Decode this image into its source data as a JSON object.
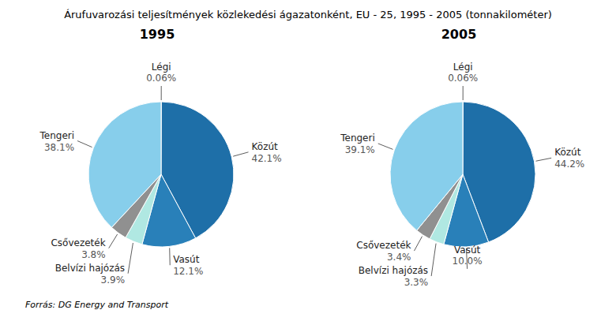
{
  "title": "Árufuvarozási teljesítmények közlekedési ágazatonként, EU - 25, 1995 - 2005 (tonnakilométer)",
  "annotations": [
    "Forrás: DG Energy and Transport"
  ],
  "chart_data": [
    {
      "type": "pie",
      "title": "1995",
      "categories": [
        "Légi",
        "Közút",
        "Vasút",
        "Belvízi hajózás",
        "Csővezeték",
        "Tengeri"
      ],
      "values": [
        0.06,
        42.1,
        12.1,
        3.9,
        3.8,
        38.1
      ],
      "value_labels": [
        "0.06%",
        "42.1%",
        "12.1%",
        "3.9%",
        "3.8%",
        "38.1%"
      ],
      "colors": [
        "#add8e6",
        "#1e6fa8",
        "#2980b9",
        "#b0e8e2",
        "#909090",
        "#87ceeb"
      ],
      "data_labels": true
    },
    {
      "type": "pie",
      "title": "2005",
      "categories": [
        "Légi",
        "Közút",
        "Vasút",
        "Belvízi hajózás",
        "Csővezeték",
        "Tengeri"
      ],
      "values": [
        0.06,
        44.2,
        10.0,
        3.3,
        3.4,
        39.1
      ],
      "value_labels": [
        "0.06%",
        "44.2%",
        "10.0%",
        "3.3%",
        "3.4%",
        "39.1%"
      ],
      "colors": [
        "#add8e6",
        "#1e6fa8",
        "#2980b9",
        "#b0e8e2",
        "#909090",
        "#87ceeb"
      ],
      "data_labels": true
    }
  ]
}
